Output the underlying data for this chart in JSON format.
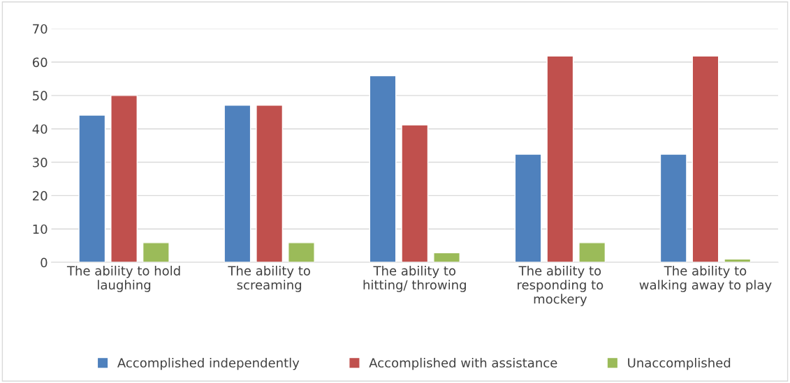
{
  "chart_data": {
    "type": "bar",
    "categories": [
      "The ability to hold laughing",
      "The ability to screaming",
      "The ability to hitting/ throwing",
      "The ability to responding to mockery",
      "The ability to walking away to play"
    ],
    "series": [
      {
        "name": "Accomplished independently",
        "color": "#4f81bd",
        "values": [
          44.1,
          47.1,
          55.9,
          32.4,
          32.4
        ]
      },
      {
        "name": "Accomplished with assistance",
        "color": "#c0504d",
        "values": [
          50,
          47.1,
          41.2,
          61.8,
          61.8
        ]
      },
      {
        "name": "Unaccomplished",
        "color": "#9bbb59",
        "values": [
          5.9,
          5.9,
          2.9,
          5.9,
          1
        ]
      }
    ],
    "ylim": [
      0,
      70
    ],
    "yticks": [
      0,
      10,
      20,
      30,
      40,
      50,
      60,
      70
    ],
    "grid": "y",
    "legend": "bottom"
  }
}
